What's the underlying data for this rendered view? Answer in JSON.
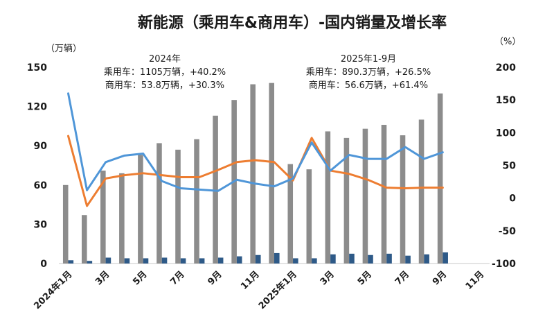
{
  "chart_data": {
    "type": "bar",
    "title": "新能源（乘用车&商用车）-国内销量及增长率",
    "left_unit": "（万辆）",
    "right_unit": "（%）",
    "left_axis": {
      "min": 0,
      "max": 150,
      "ticks": [
        0,
        30,
        60,
        90,
        120,
        150
      ]
    },
    "right_axis": {
      "min": -100,
      "max": 200,
      "ticks": [
        -100,
        -50,
        0,
        50,
        100,
        150,
        200
      ]
    },
    "grid": false,
    "annotations": [
      {
        "lines": [
          "2024年",
          "乘用车：1105万辆，+40.2%",
          "商用车：53.8万辆，+30.3%"
        ]
      },
      {
        "lines": [
          "2025年1-9月",
          "乘用车：890.3万辆，+26.5%",
          "商用车：56.6万辆，+61.4%"
        ]
      }
    ],
    "x_tick_labels": [
      "2024年1月",
      "",
      "3月",
      "",
      "5月",
      "",
      "7月",
      "",
      "9月",
      "",
      "11月",
      "",
      "2025年1月",
      "",
      "3月",
      "",
      "5月",
      "",
      "7月",
      "",
      "9月",
      "",
      "11月"
    ],
    "series": [
      {
        "kind": "bar",
        "axis": "left",
        "color": "#8c8c8c",
        "values": [
          60,
          37,
          71,
          69,
          83,
          92,
          87,
          95,
          113,
          125,
          137,
          138,
          76,
          72,
          101,
          96,
          103,
          106,
          98,
          110,
          130,
          null,
          null
        ]
      },
      {
        "kind": "bar",
        "axis": "left",
        "color": "#2e5a88",
        "values": [
          2.5,
          2,
          4.5,
          4,
          4,
          4.5,
          4,
          4,
          4.5,
          5.5,
          6.5,
          8,
          4,
          4,
          7,
          7.5,
          6.5,
          7.5,
          6,
          7,
          8.5,
          null,
          null
        ]
      },
      {
        "kind": "line",
        "axis": "right",
        "color": "#ed7d31",
        "values": [
          95,
          -12,
          30,
          35,
          38,
          35,
          32,
          32,
          43,
          55,
          58,
          55,
          27,
          92,
          42,
          37,
          28,
          16,
          15,
          16,
          16,
          null,
          null
        ]
      },
      {
        "kind": "line",
        "axis": "right",
        "color": "#4f96d8",
        "values": [
          160,
          12,
          55,
          65,
          68,
          26,
          15,
          13,
          11,
          28,
          22,
          18,
          30,
          85,
          42,
          66,
          60,
          60,
          78,
          60,
          70,
          null,
          null
        ]
      }
    ]
  }
}
